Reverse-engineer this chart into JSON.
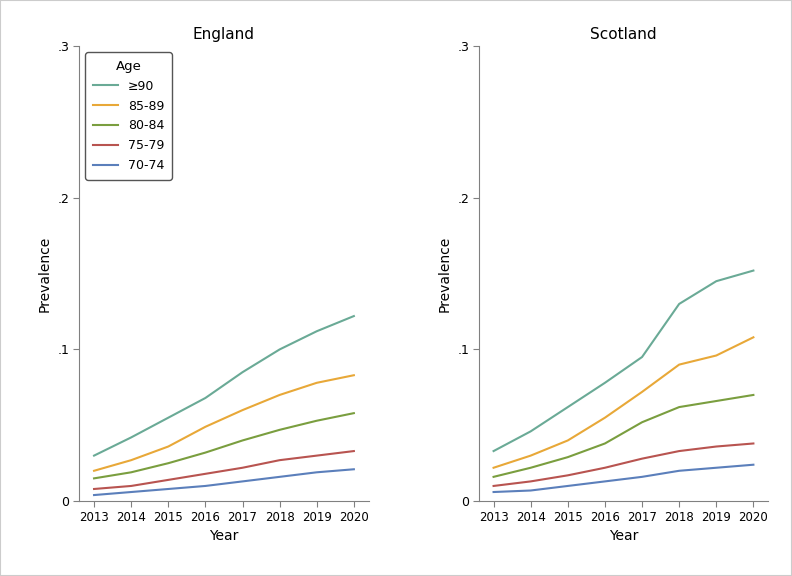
{
  "years": [
    2013,
    2014,
    2015,
    2016,
    2017,
    2018,
    2019,
    2020
  ],
  "england": {
    "ge90": [
      0.03,
      0.042,
      0.055,
      0.068,
      0.085,
      0.1,
      0.112,
      0.122
    ],
    "85_89": [
      0.02,
      0.027,
      0.036,
      0.049,
      0.06,
      0.07,
      0.078,
      0.083
    ],
    "80_84": [
      0.015,
      0.019,
      0.025,
      0.032,
      0.04,
      0.047,
      0.053,
      0.058
    ],
    "75_79": [
      0.008,
      0.01,
      0.014,
      0.018,
      0.022,
      0.027,
      0.03,
      0.033
    ],
    "70_74": [
      0.004,
      0.006,
      0.008,
      0.01,
      0.013,
      0.016,
      0.019,
      0.021
    ]
  },
  "scotland": {
    "ge90": [
      0.033,
      0.046,
      0.062,
      0.078,
      0.095,
      0.13,
      0.145,
      0.152
    ],
    "85_89": [
      0.022,
      0.03,
      0.04,
      0.055,
      0.072,
      0.09,
      0.096,
      0.108
    ],
    "80_84": [
      0.016,
      0.022,
      0.029,
      0.038,
      0.052,
      0.062,
      0.066,
      0.07
    ],
    "75_79": [
      0.01,
      0.013,
      0.017,
      0.022,
      0.028,
      0.033,
      0.036,
      0.038
    ],
    "70_74": [
      0.006,
      0.007,
      0.01,
      0.013,
      0.016,
      0.02,
      0.022,
      0.024
    ]
  },
  "colors": {
    "ge90": "#6aaa96",
    "85_89": "#e8a838",
    "80_84": "#7a9e3f",
    "75_79": "#b85450",
    "70_74": "#5b7fbb"
  },
  "labels": {
    "ge90": "≥90",
    "85_89": "85-89",
    "80_84": "80-84",
    "75_79": "75-79",
    "70_74": "70-74"
  },
  "ylim": [
    0,
    0.3
  ],
  "yticks": [
    0,
    0.1,
    0.2,
    0.3
  ],
  "ytick_labels": [
    "0",
    ".1",
    ".2",
    ".3"
  ],
  "ylabel": "Prevalence",
  "xlabel": "Year",
  "title_england": "England",
  "title_scotland": "Scotland",
  "legend_title": "Age",
  "background_color": "#ffffff",
  "outer_border_color": "#d0d0d0",
  "line_width": 1.5,
  "spine_color": "#808080",
  "tick_color": "#808080"
}
